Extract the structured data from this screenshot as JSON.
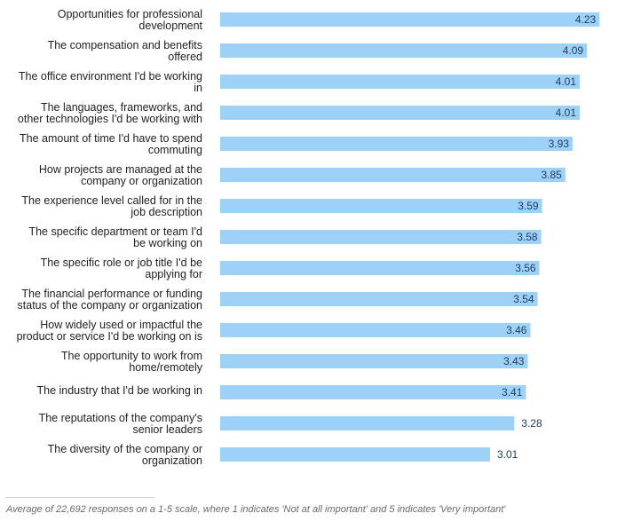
{
  "chart_data": {
    "type": "bar",
    "orientation": "horizontal",
    "title": "",
    "xlabel": "",
    "ylabel": "",
    "xlim": [
      0,
      5
    ],
    "grid": false,
    "legend": "none",
    "bar_color": "#9ed1f7",
    "value_color": "#1f3a5f",
    "categories": [
      [
        "Opportunities for professional",
        "development"
      ],
      [
        "The compensation and benefits",
        "offered"
      ],
      [
        "The office environment I'd be working",
        "in"
      ],
      [
        "The languages, frameworks, and",
        "other technologies I'd be working with"
      ],
      [
        "The amount of time I'd have to spend",
        "commuting"
      ],
      [
        "How projects are managed at the",
        "company or organization"
      ],
      [
        "The experience level called for in the",
        "job description"
      ],
      [
        "The specific department or team I'd",
        "be working on"
      ],
      [
        "The specific role or job title I'd be",
        "applying for"
      ],
      [
        "The financial performance or funding",
        "status of the company or organization"
      ],
      [
        "How widely used or impactful the",
        "product or service I'd be working on is"
      ],
      [
        "The opportunity to work from",
        "home/remotely"
      ],
      [
        "The industry that I'd be working in"
      ],
      [
        "The reputations of the company's",
        "senior leaders"
      ],
      [
        "The diversity of the company or",
        "organization"
      ]
    ],
    "values": [
      4.23,
      4.09,
      4.01,
      4.01,
      3.93,
      3.85,
      3.59,
      3.58,
      3.56,
      3.54,
      3.46,
      3.43,
      3.41,
      3.28,
      3.01
    ],
    "value_labels": [
      "4.23",
      "4.09",
      "4.01",
      "4.01",
      "3.93",
      "3.85",
      "3.59",
      "3.58",
      "3.56",
      "3.54",
      "3.46",
      "3.43",
      "3.41",
      "3.28",
      "3.01"
    ]
  },
  "footnote": "Average of 22,692 responses on a 1-5 scale, where 1 indicates 'Not at all important' and 5 indicates 'Very important'"
}
